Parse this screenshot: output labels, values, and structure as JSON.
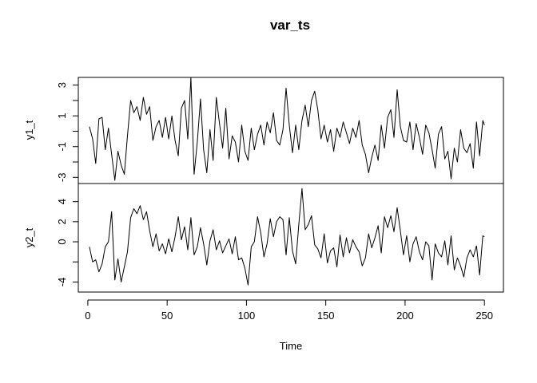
{
  "chart_data": {
    "type": "line",
    "title": "var_ts",
    "xlabel": "Time",
    "x_ticks": [
      0,
      50,
      100,
      150,
      200,
      250
    ],
    "xlim": [
      -6,
      262
    ],
    "panels": [
      {
        "ylabel": "y1_t",
        "ylim": [
          -3.4,
          3.5
        ],
        "y_ticks": [
          -3,
          -2,
          -1,
          0,
          1,
          2,
          3
        ],
        "y_tick_labels": [
          "-3",
          "",
          "-1",
          "",
          "1",
          "",
          "3"
        ],
        "x": [
          1,
          3,
          5,
          7,
          9,
          11,
          13,
          15,
          17,
          19,
          21,
          23,
          25,
          27,
          29,
          31,
          33,
          35,
          37,
          39,
          41,
          43,
          45,
          47,
          49,
          51,
          53,
          55,
          57,
          59,
          61,
          63,
          65,
          67,
          69,
          71,
          73,
          75,
          77,
          79,
          81,
          83,
          85,
          87,
          89,
          91,
          93,
          95,
          97,
          99,
          101,
          103,
          105,
          107,
          109,
          111,
          113,
          115,
          117,
          119,
          121,
          123,
          125,
          127,
          129,
          131,
          133,
          135,
          137,
          139,
          141,
          143,
          145,
          147,
          149,
          151,
          153,
          155,
          157,
          159,
          161,
          163,
          165,
          167,
          169,
          171,
          173,
          175,
          177,
          179,
          181,
          183,
          185,
          187,
          189,
          191,
          193,
          195,
          197,
          199,
          201,
          203,
          205,
          207,
          209,
          211,
          213,
          215,
          217,
          219,
          221,
          223,
          225,
          227,
          229,
          231,
          233,
          235,
          237,
          239,
          241,
          243,
          245,
          247,
          249,
          250
        ],
        "values": [
          0.3,
          -0.5,
          -2.1,
          0.8,
          0.9,
          -1.2,
          0.2,
          -1.5,
          -3.2,
          -1.3,
          -2.2,
          -2.8,
          -0.3,
          2.0,
          1.2,
          1.6,
          0.7,
          2.2,
          1.1,
          1.6,
          -0.6,
          0.3,
          0.7,
          -0.4,
          0.9,
          -0.5,
          1.0,
          -0.6,
          -1.6,
          1.5,
          2.0,
          -0.5,
          3.5,
          -2.8,
          -0.7,
          2.1,
          -1.2,
          -2.7,
          0.1,
          -1.9,
          2.2,
          0.5,
          -1.1,
          1.5,
          -1.8,
          -0.3,
          -0.7,
          -2.0,
          0.4,
          -1.3,
          -1.9,
          0.2,
          -1.2,
          -0.2,
          0.4,
          -0.9,
          0.6,
          -0.1,
          1.2,
          -0.6,
          -0.9,
          0.1,
          2.8,
          0.4,
          -1.4,
          0.4,
          -1.2,
          0.7,
          1.7,
          0.3,
          2.0,
          2.6,
          1.4,
          -0.5,
          0.4,
          -0.7,
          0.1,
          -1.3,
          0.2,
          -0.4,
          0.6,
          -0.1,
          -0.8,
          0.2,
          -0.4,
          0.7,
          -0.9,
          -1.5,
          -2.7,
          -1.7,
          -0.9,
          -1.9,
          0.4,
          -1.1,
          0.9,
          1.4,
          -0.4,
          2.7,
          0.3,
          -0.6,
          -0.7,
          0.6,
          -1.2,
          0.5,
          -0.4,
          -1.5,
          0.4,
          -0.1,
          -1.2,
          -2.4,
          -0.2,
          0.3,
          -1.8,
          -1.3,
          -3.1,
          -1.1,
          -2.0,
          0.1,
          -1.1,
          -1.4,
          -0.8,
          -2.4,
          0.6,
          -1.6,
          0.7,
          0.4
        ]
      },
      {
        "ylabel": "y2_t",
        "ylim": [
          -5,
          5.8
        ],
        "y_ticks": [
          -4,
          -2,
          0,
          2,
          4
        ],
        "y_tick_labels": [
          "-4",
          "",
          "0",
          "2",
          "4"
        ],
        "x": [
          1,
          3,
          5,
          7,
          9,
          11,
          13,
          15,
          17,
          19,
          21,
          23,
          25,
          27,
          29,
          31,
          33,
          35,
          37,
          39,
          41,
          43,
          45,
          47,
          49,
          51,
          53,
          55,
          57,
          59,
          61,
          63,
          65,
          67,
          69,
          71,
          73,
          75,
          77,
          79,
          81,
          83,
          85,
          87,
          89,
          91,
          93,
          95,
          97,
          99,
          101,
          103,
          105,
          107,
          109,
          111,
          113,
          115,
          117,
          119,
          121,
          123,
          125,
          127,
          129,
          131,
          133,
          135,
          137,
          139,
          141,
          143,
          145,
          147,
          149,
          151,
          153,
          155,
          157,
          159,
          161,
          163,
          165,
          167,
          169,
          171,
          173,
          175,
          177,
          179,
          181,
          183,
          185,
          187,
          189,
          191,
          193,
          195,
          197,
          199,
          201,
          203,
          205,
          207,
          209,
          211,
          213,
          215,
          217,
          219,
          221,
          223,
          225,
          227,
          229,
          231,
          233,
          235,
          237,
          239,
          241,
          243,
          245,
          247,
          249,
          250
        ],
        "values": [
          -0.5,
          -2.0,
          -1.8,
          -3.0,
          -2.2,
          -0.5,
          0.0,
          3.0,
          -3.8,
          -1.7,
          -4.0,
          -2.5,
          -1.0,
          2.4,
          3.3,
          2.8,
          3.6,
          2.2,
          3.0,
          1.1,
          -0.5,
          0.8,
          -0.9,
          -0.2,
          -1.2,
          0.3,
          -1.0,
          0.5,
          2.5,
          0.2,
          1.5,
          -0.8,
          2.4,
          -1.3,
          -0.5,
          1.4,
          -0.2,
          -2.3,
          0.1,
          1.2,
          -0.8,
          0.1,
          -1.1,
          -0.4,
          0.3,
          -1.2,
          0.5,
          -1.8,
          -1.6,
          -2.6,
          -4.3,
          -0.5,
          0.0,
          2.5,
          0.9,
          -1.5,
          -0.2,
          2.3,
          0.5,
          2.0,
          2.5,
          2.2,
          -1.3,
          2.4,
          -0.9,
          -2.2,
          1.7,
          5.3,
          1.2,
          1.7,
          2.6,
          -0.3,
          -0.7,
          -1.6,
          0.8,
          -2.1,
          -0.9,
          -0.6,
          -2.5,
          0.7,
          -1.5,
          0.4,
          -1.1,
          0.2,
          -0.5,
          -1.0,
          -2.4,
          -1.6,
          0.8,
          -0.6,
          0.4,
          1.6,
          -1.1,
          2.5,
          1.4,
          2.6,
          1.0,
          3.4,
          1.1,
          -1.3,
          0.6,
          -2.0,
          -0.2,
          0.5,
          -1.0,
          -1.8,
          0.0,
          -0.4,
          -3.8,
          -0.2,
          -1.1,
          -1.5,
          0.1,
          -2.3,
          0.6,
          -2.8,
          -1.6,
          -2.4,
          -3.5,
          -1.6,
          -0.8,
          -1.5,
          -0.4,
          -3.3,
          0.6,
          0.5
        ]
      }
    ]
  }
}
